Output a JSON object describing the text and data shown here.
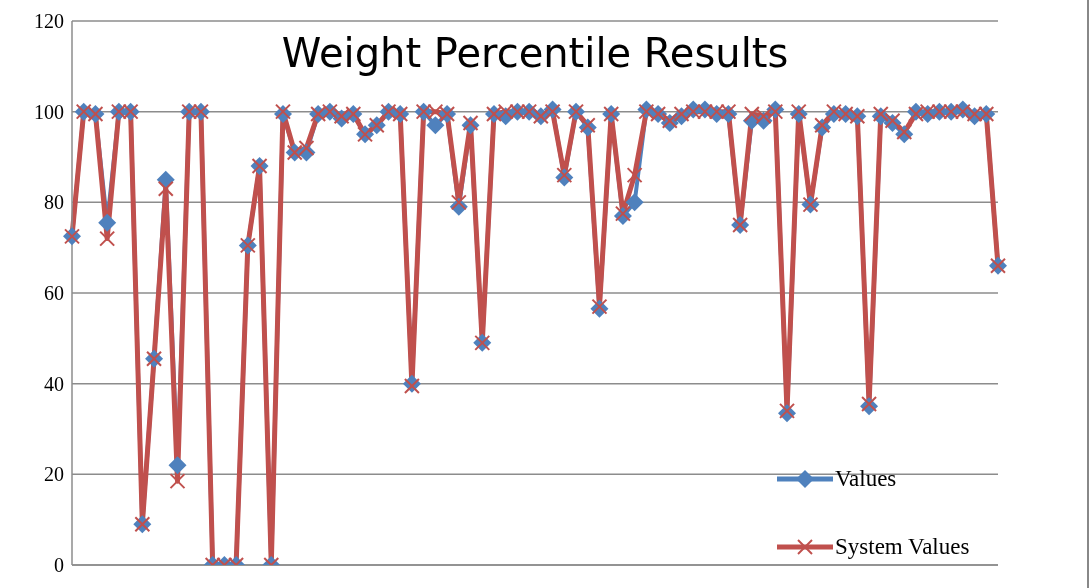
{
  "chart_data": {
    "type": "line",
    "title": "Weight Percentile Results",
    "categories": [
      null,
      null,
      null,
      null,
      null,
      null,
      null,
      null,
      null,
      null,
      null,
      null,
      null,
      null,
      null,
      null,
      null,
      null,
      null,
      null,
      null,
      null,
      null,
      null,
      null,
      null,
      null,
      null,
      null,
      null,
      null,
      null,
      null,
      null,
      null,
      null,
      null,
      null,
      null,
      null,
      null,
      null,
      null,
      null,
      null,
      null,
      null,
      null,
      null,
      null,
      null,
      null,
      null,
      null,
      null,
      null,
      null,
      null,
      null,
      null,
      null,
      null,
      null,
      null,
      null,
      null,
      null,
      null,
      null,
      null,
      null,
      null,
      null,
      null,
      null,
      null,
      null,
      null,
      null,
      null
    ],
    "series": [
      {
        "name": "Values",
        "color": "#4f81bd",
        "marker": "diamond",
        "values": [
          72.5,
          100,
          99.5,
          75.5,
          100,
          100,
          9,
          45.5,
          85,
          22,
          100,
          100,
          0,
          0,
          0,
          70.5,
          88,
          0,
          99.5,
          91,
          91,
          99.5,
          100,
          98.5,
          99.5,
          95,
          97,
          100,
          99.5,
          40,
          100,
          97,
          99.5,
          79,
          97,
          49,
          99.5,
          99,
          100,
          100,
          99,
          100.5,
          85.5,
          100,
          96.5,
          56.5,
          99.5,
          77,
          80,
          100.5,
          99.5,
          97.5,
          99,
          100.5,
          100.5,
          99.5,
          99.5,
          75,
          98,
          98,
          100.5,
          33.5,
          99.5,
          79.5,
          96.5,
          99.5,
          99.5,
          99,
          35,
          99,
          97.5,
          95,
          100,
          99.5,
          100,
          100,
          100.5,
          99,
          99.5,
          66
        ]
      },
      {
        "name": "System Values",
        "color": "#c0504d",
        "marker": "cross",
        "values": [
          72.5,
          100,
          99.5,
          72,
          100,
          100,
          9,
          45.5,
          83,
          18.5,
          100,
          100,
          0,
          0,
          0,
          70.5,
          88,
          0,
          100,
          91,
          92,
          99.5,
          100,
          99,
          99.5,
          95,
          97,
          100,
          99.5,
          39.5,
          100,
          100,
          99.5,
          80,
          97.5,
          49,
          99.5,
          100,
          100,
          100,
          99,
          100,
          86,
          100,
          97,
          57,
          99.5,
          77.5,
          86,
          100,
          99.5,
          98,
          99.5,
          100,
          100,
          100,
          100,
          75,
          99.5,
          99,
          100,
          34,
          100,
          79.5,
          97,
          100,
          99.5,
          99,
          35.5,
          99.5,
          98,
          95.5,
          99.5,
          100,
          100,
          100,
          100,
          99.5,
          99.5,
          66
        ]
      }
    ],
    "ylim": [
      0,
      120
    ],
    "yticks": [
      0,
      20,
      40,
      60,
      80,
      100,
      120
    ],
    "grid": "y",
    "legend": "bottom right",
    "tick_labels": "y"
  }
}
